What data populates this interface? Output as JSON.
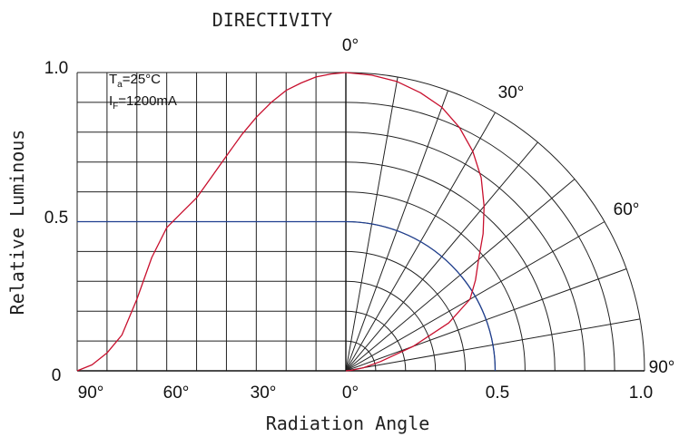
{
  "chart_data": {
    "type": "line",
    "title": "DIRECTIVITY",
    "xlabel": "Radiation Angle",
    "ylabel": "Relative Luminous",
    "cartesian_x_ticks": [
      "90°",
      "60°",
      "30°",
      "0°"
    ],
    "polar_r_ticks": [
      "0.5",
      "1.0"
    ],
    "y_ticks": [
      "0",
      "0.5",
      "1.0"
    ],
    "polar_angle_labels": [
      "0°",
      "30°",
      "60°",
      "90°"
    ],
    "ylim": [
      0,
      1.0
    ],
    "angle_range_deg": [
      0,
      90
    ],
    "legend": {
      "ta_main": "T",
      "ta_sub": "a",
      "ta_value": "=25°C",
      "if_main": "I",
      "if_sub": "F",
      "if_value": "=1200mA"
    },
    "series": [
      {
        "color": "#c8102e",
        "angle_deg": [
          0,
          5,
          10,
          15,
          20,
          25,
          30,
          35,
          40,
          45,
          50,
          55,
          60,
          65,
          70,
          75,
          80,
          85,
          90
        ],
        "values": [
          1.0,
          0.995,
          0.985,
          0.965,
          0.94,
          0.9,
          0.85,
          0.79,
          0.72,
          0.65,
          0.58,
          0.53,
          0.48,
          0.38,
          0.24,
          0.12,
          0.06,
          0.02,
          0.0
        ]
      }
    ],
    "reference": {
      "color": "#1f3f8f",
      "value": 0.5
    },
    "grid": true
  }
}
